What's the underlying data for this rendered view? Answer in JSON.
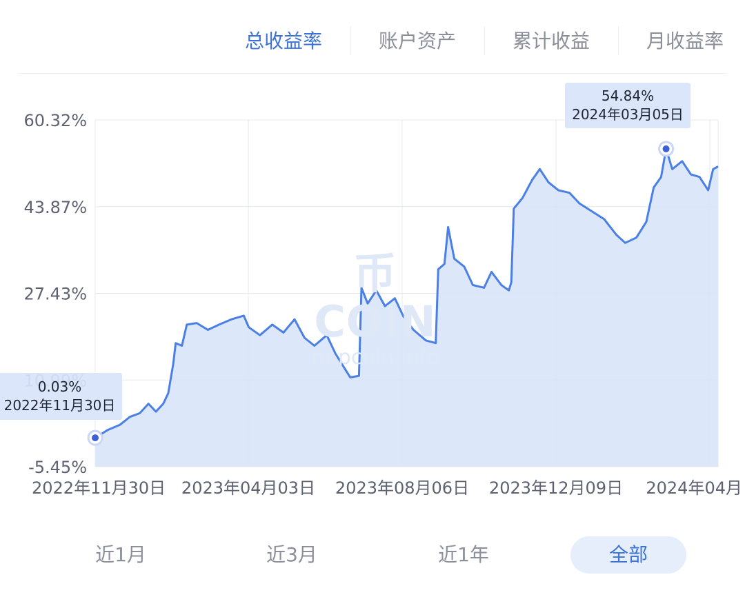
{
  "tabs": {
    "items": [
      {
        "label": "总收益率",
        "active": true
      },
      {
        "label": "账户资产",
        "active": false
      },
      {
        "label": "累计收益",
        "active": false
      },
      {
        "label": "月收益率",
        "active": false
      }
    ]
  },
  "watermark": {
    "logo": "币COIN",
    "site": "m.pcoin.info"
  },
  "tooltips": {
    "end": {
      "value": "54.84%",
      "date": "2024年03月05日"
    },
    "start": {
      "value": "0.03%",
      "date": "2022年11月30日"
    }
  },
  "ranges": {
    "items": [
      {
        "label": "近1月",
        "active": false
      },
      {
        "label": "近3月",
        "active": false
      },
      {
        "label": "近1年",
        "active": false
      },
      {
        "label": "全部",
        "active": true
      }
    ]
  },
  "colors": {
    "accent": "#3b72d9",
    "line": "#4a7fe6",
    "fill": "#d8e4fa",
    "grid": "#e6e8ec",
    "text": "#5c6270"
  },
  "chart_data": {
    "type": "area",
    "x_start": "2022-11-30",
    "x_end": "2024-04",
    "ylim": [
      -5.45,
      60.32
    ],
    "yticks": [
      "60.32%",
      "43.87%",
      "27.43%",
      "10.99%",
      "-5.45%"
    ],
    "xticks": [
      "2022年11月30日",
      "2023年04月03日",
      "2023年08月06日",
      "2023年12月09日",
      "2024年04月"
    ],
    "grid": true,
    "series": [
      {
        "points": [
          [
            "2022-11-30",
            0.03
          ],
          [
            "2022-12-10",
            1.5
          ],
          [
            "2022-12-20",
            2.5
          ],
          [
            "2022-12-28",
            4.0
          ],
          [
            "2023-01-05",
            4.7
          ],
          [
            "2023-01-12",
            6.5
          ],
          [
            "2023-01-18",
            5.0
          ],
          [
            "2023-01-24",
            6.5
          ],
          [
            "2023-01-28",
            8.5
          ],
          [
            "2023-02-01",
            14.0
          ],
          [
            "2023-02-03",
            18.0
          ],
          [
            "2023-02-08",
            17.5
          ],
          [
            "2023-02-12",
            21.5
          ],
          [
            "2023-02-20",
            21.8
          ],
          [
            "2023-03-01",
            20.5
          ],
          [
            "2023-03-10",
            21.5
          ],
          [
            "2023-03-20",
            22.5
          ],
          [
            "2023-03-30",
            23.2
          ],
          [
            "2023-04-03",
            21.0
          ],
          [
            "2023-04-12",
            19.5
          ],
          [
            "2023-04-22",
            21.5
          ],
          [
            "2023-05-01",
            20.0
          ],
          [
            "2023-05-10",
            22.5
          ],
          [
            "2023-05-18",
            19.0
          ],
          [
            "2023-05-26",
            17.5
          ],
          [
            "2023-06-05",
            19.5
          ],
          [
            "2023-06-12",
            16.0
          ],
          [
            "2023-06-20",
            13.0
          ],
          [
            "2023-06-24",
            11.5
          ],
          [
            "2023-07-01",
            11.8
          ],
          [
            "2023-07-03",
            28.5
          ],
          [
            "2023-07-08",
            25.5
          ],
          [
            "2023-07-15",
            28.0
          ],
          [
            "2023-07-22",
            25.0
          ],
          [
            "2023-07-30",
            26.5
          ],
          [
            "2023-08-06",
            23.0
          ],
          [
            "2023-08-14",
            20.5
          ],
          [
            "2023-08-24",
            18.5
          ],
          [
            "2023-09-01",
            18.0
          ],
          [
            "2023-09-03",
            32.0
          ],
          [
            "2023-09-08",
            33.0
          ],
          [
            "2023-09-11",
            40.0
          ],
          [
            "2023-09-16",
            34.0
          ],
          [
            "2023-09-24",
            32.5
          ],
          [
            "2023-10-01",
            29.0
          ],
          [
            "2023-10-10",
            28.5
          ],
          [
            "2023-10-16",
            31.5
          ],
          [
            "2023-10-24",
            29.0
          ],
          [
            "2023-10-30",
            28.0
          ],
          [
            "2023-11-01",
            29.5
          ],
          [
            "2023-11-03",
            43.5
          ],
          [
            "2023-11-10",
            45.5
          ],
          [
            "2023-11-18",
            49.0
          ],
          [
            "2023-11-24",
            51.0
          ],
          [
            "2023-12-01",
            48.5
          ],
          [
            "2023-12-09",
            47.0
          ],
          [
            "2023-12-18",
            46.5
          ],
          [
            "2023-12-26",
            44.5
          ],
          [
            "2024-01-05",
            43.0
          ],
          [
            "2024-01-15",
            41.5
          ],
          [
            "2024-01-25",
            38.5
          ],
          [
            "2024-02-01",
            37.0
          ],
          [
            "2024-02-10",
            38.0
          ],
          [
            "2024-02-18",
            41.0
          ],
          [
            "2024-02-24",
            47.5
          ],
          [
            "2024-03-01",
            49.5
          ],
          [
            "2024-03-05",
            54.84
          ],
          [
            "2024-03-10",
            51.0
          ],
          [
            "2024-03-18",
            52.5
          ],
          [
            "2024-03-25",
            50.0
          ],
          [
            "2024-04-01",
            49.5
          ],
          [
            "2024-04-08",
            47.0
          ],
          [
            "2024-04-12",
            51.0
          ],
          [
            "2024-04-16",
            51.5
          ]
        ]
      }
    ]
  }
}
